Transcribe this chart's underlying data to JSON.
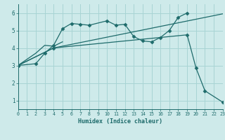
{
  "background_color": "#ceeaea",
  "grid_color": "#a8d4d4",
  "line_color": "#1e6b6b",
  "marker": "D",
  "markersize": 2.5,
  "xlabel": "Humidex (Indice chaleur)",
  "xlim": [
    0,
    23
  ],
  "ylim": [
    0.5,
    6.5
  ],
  "yticks": [
    1,
    2,
    3,
    4,
    5,
    6
  ],
  "xticks": [
    0,
    1,
    2,
    3,
    4,
    5,
    6,
    7,
    8,
    9,
    10,
    11,
    12,
    13,
    14,
    15,
    16,
    17,
    18,
    19,
    20,
    21,
    22,
    23
  ],
  "lines": [
    {
      "x": [
        0,
        2,
        3,
        4,
        5,
        6,
        7,
        8,
        10,
        11,
        12,
        13,
        14,
        15,
        16,
        17,
        18,
        19
      ],
      "y": [
        3.0,
        3.1,
        3.7,
        4.15,
        5.1,
        5.4,
        5.35,
        5.3,
        5.55,
        5.3,
        5.35,
        4.65,
        4.4,
        4.35,
        4.6,
        5.0,
        5.75,
        6.0
      ],
      "has_markers": true
    },
    {
      "x": [
        0,
        2,
        3,
        4,
        5
      ],
      "y": [
        3.0,
        3.7,
        4.15,
        4.1,
        4.35
      ],
      "has_markers": false
    },
    {
      "x": [
        0,
        4,
        19,
        20,
        21,
        23
      ],
      "y": [
        3.0,
        4.0,
        4.75,
        2.85,
        1.55,
        0.9
      ],
      "has_markers": true
    },
    {
      "x": [
        0,
        4,
        23
      ],
      "y": [
        3.0,
        4.0,
        5.95
      ],
      "has_markers": false
    }
  ]
}
